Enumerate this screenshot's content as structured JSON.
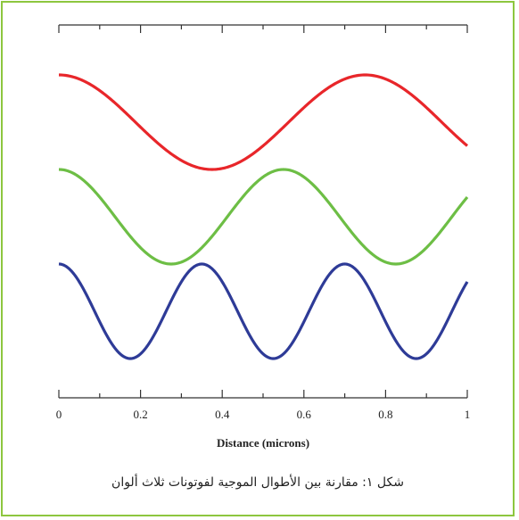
{
  "chart_data": {
    "type": "line",
    "title": "",
    "xlabel": "Distance (microns)",
    "ylabel": "",
    "xlim": [
      0,
      1
    ],
    "grid": false,
    "x_ticks": [
      "0",
      "0.2",
      "0.4",
      "0.6",
      "0.8",
      "1"
    ],
    "x_tick_values": [
      0,
      0.2,
      0.4,
      0.6,
      0.8,
      1
    ],
    "series": [
      {
        "color": "#e8262a",
        "wavelength_microns": 0.75,
        "phase_peak_x": 0.0,
        "amplitude": 1,
        "offset": 2
      },
      {
        "color": "#6dbe45",
        "wavelength_microns": 0.55,
        "phase_peak_x": 0.0,
        "amplitude": 1,
        "offset": 0
      },
      {
        "color": "#2e3b97",
        "wavelength_microns": 0.35,
        "phase_peak_x": 0.0,
        "amplitude": 1,
        "offset": -2
      }
    ]
  },
  "caption": "شكل ١: مقارنة بين الأطوال الموجية لفوتونات ثلاث ألوان"
}
